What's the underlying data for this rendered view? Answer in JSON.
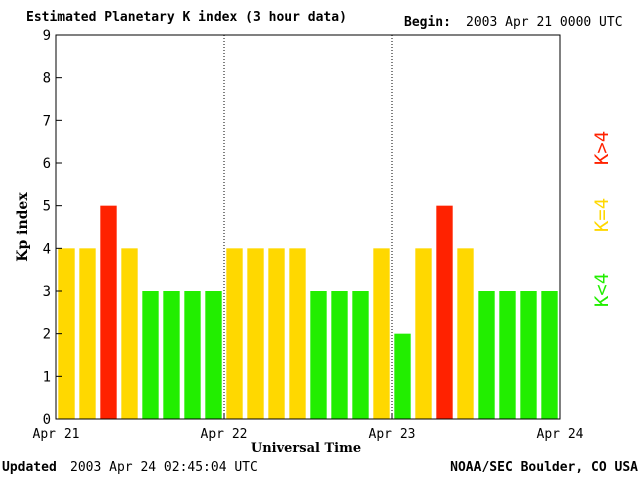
{
  "header": {
    "title": "Estimated Planetary K index (3 hour data)",
    "begin_label": "Begin:",
    "begin_value": "2003 Apr 21 0000 UTC"
  },
  "footer": {
    "updated_label": "Updated",
    "updated_value": "2003 Apr 24 02:45:04 UTC",
    "credit": "NOAA/SEC Boulder, CO USA"
  },
  "chart_data": {
    "type": "bar",
    "ylabel": "Kp index",
    "xlabel": "Universal Time",
    "ylim": [
      0,
      9
    ],
    "y_ticks": [
      0,
      1,
      2,
      3,
      4,
      5,
      6,
      7,
      8,
      9
    ],
    "x_ticks": [
      "Apr 21",
      "Apr 22",
      "Apr 23",
      "Apr 24"
    ],
    "day_separators": [
      "Apr 22",
      "Apr 23"
    ],
    "values": [
      4,
      4,
      5,
      4,
      3,
      3,
      3,
      3,
      4,
      4,
      4,
      4,
      3,
      3,
      3,
      4,
      2,
      4,
      5,
      4,
      3,
      3,
      3,
      3
    ],
    "colors": {
      "low": "#22ee00",
      "medium": "#ffd800",
      "high": "#ff2200"
    },
    "legend": {
      "placement": "right",
      "items": [
        {
          "label": "K<4",
          "color": "#22ee00"
        },
        {
          "label": "K=4",
          "color": "#ffd800"
        },
        {
          "label": "K>4",
          "color": "#ff2200"
        }
      ]
    }
  }
}
